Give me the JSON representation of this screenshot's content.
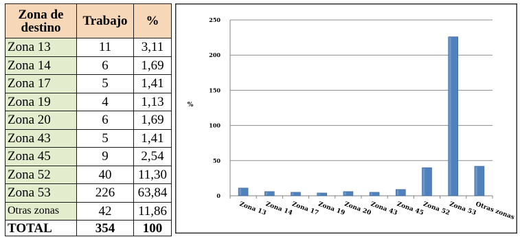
{
  "table": {
    "headers": [
      "Zona de destino",
      "Trabajo",
      "%"
    ],
    "rows": [
      {
        "zona": "Zona 13",
        "trabajo": "11",
        "pct": "3,11"
      },
      {
        "zona": "Zona 14",
        "trabajo": "6",
        "pct": "1,69"
      },
      {
        "zona": "Zona 17",
        "trabajo": "5",
        "pct": "1,41"
      },
      {
        "zona": "Zona 19",
        "trabajo": "4",
        "pct": "1,13"
      },
      {
        "zona": "Zona 20",
        "trabajo": "6",
        "pct": "1,69"
      },
      {
        "zona": "Zona 43",
        "trabajo": "5",
        "pct": "1,41"
      },
      {
        "zona": "Zona 45",
        "trabajo": "9",
        "pct": "2,54"
      },
      {
        "zona": "Zona 52",
        "trabajo": "40",
        "pct": "11,30"
      },
      {
        "zona": "Zona 53",
        "trabajo": "226",
        "pct": "63,84"
      },
      {
        "zona": "Otras zonas",
        "trabajo": "42",
        "pct": "11,86"
      }
    ],
    "total": {
      "label": "TOTAL",
      "trabajo": "354",
      "pct": "100"
    }
  },
  "chart_data": {
    "type": "bar",
    "categories": [
      "Zona 13",
      "Zona 14",
      "Zona 17",
      "Zona 19",
      "Zona 20",
      "Zona 43",
      "Zona 45",
      "Zona 52",
      "Zona 53",
      "Otras zonas"
    ],
    "values": [
      11,
      6,
      5,
      4,
      6,
      5,
      9,
      40,
      226,
      42
    ],
    "title": "",
    "xlabel": "",
    "ylabel": "%",
    "ylim": [
      0,
      250
    ],
    "yticks": [
      0,
      50,
      100,
      150,
      200,
      250
    ],
    "grid": true,
    "legend": "none",
    "bar_color": "#4f81bd"
  },
  "colors": {
    "header_bg": "#f6d7b8",
    "zone_bg": "#e3edcd",
    "bar": "#4f81bd",
    "grid": "#8c8c8c"
  }
}
